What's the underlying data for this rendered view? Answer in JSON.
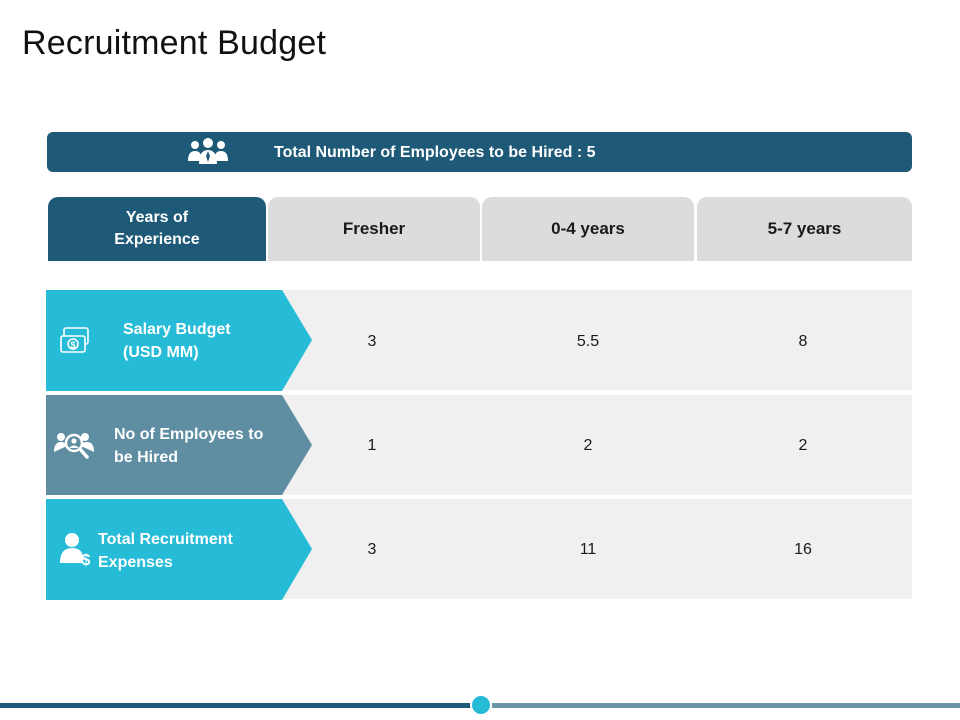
{
  "title": "Recruitment Budget",
  "banner": {
    "icon": "team-icon",
    "text": "Total Number of Employees to be Hired : 5"
  },
  "header": {
    "first": "Years of Experience",
    "columns": [
      "Fresher",
      "0-4 years",
      "5-7 years"
    ]
  },
  "rows": [
    {
      "label": "Salary Budget (USD MM)",
      "icon": "money-icon",
      "color": "#26bcd7",
      "values": [
        "3",
        "5.5",
        "8"
      ]
    },
    {
      "label": "No of Employees to be Hired",
      "icon": "search-people-icon",
      "color": "#5f8ea3",
      "values": [
        "1",
        "2",
        "2"
      ]
    },
    {
      "label": "Total Recruitment Expenses",
      "icon": "person-dollar-icon",
      "color": "#26bcd7",
      "values": [
        "3",
        "11",
        "16"
      ]
    }
  ],
  "colors": {
    "dark_blue": "#1e5a78",
    "cyan": "#26bcd7",
    "slate": "#5f8ea3",
    "header_gray": "#dcdcdc",
    "row_gray": "#f0f0f0"
  }
}
